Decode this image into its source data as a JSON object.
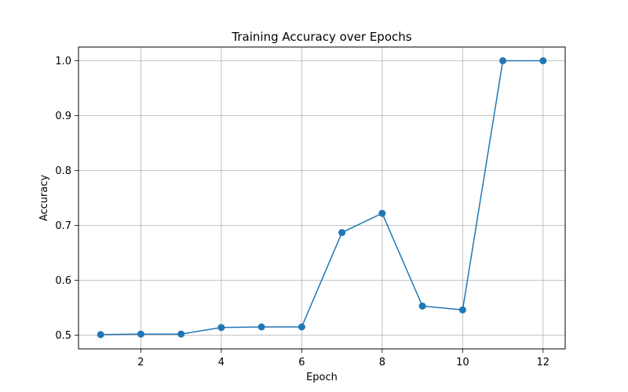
{
  "chart_data": {
    "type": "line",
    "title": "Training Accuracy over Epochs",
    "xlabel": "Epoch",
    "ylabel": "Accuracy",
    "xlim": [
      0.45,
      12.55
    ],
    "ylim": [
      0.475,
      1.025
    ],
    "xticks": [
      2,
      4,
      6,
      8,
      10,
      12
    ],
    "yticks": [
      0.5,
      0.6,
      0.7,
      0.8,
      0.9,
      1.0
    ],
    "xtick_labels": [
      "2",
      "4",
      "6",
      "8",
      "10",
      "12"
    ],
    "ytick_labels": [
      "0.5",
      "0.6",
      "0.7",
      "0.8",
      "0.9",
      "1.0"
    ],
    "grid": true,
    "series": [
      {
        "color": "#1f77b4",
        "marker": "circle",
        "x": [
          1,
          2,
          3,
          4,
          5,
          6,
          7,
          8,
          9,
          10,
          11,
          12
        ],
        "y": [
          0.501,
          0.502,
          0.502,
          0.514,
          0.515,
          0.515,
          0.687,
          0.722,
          0.553,
          0.546,
          1.0,
          1.0
        ]
      }
    ]
  }
}
